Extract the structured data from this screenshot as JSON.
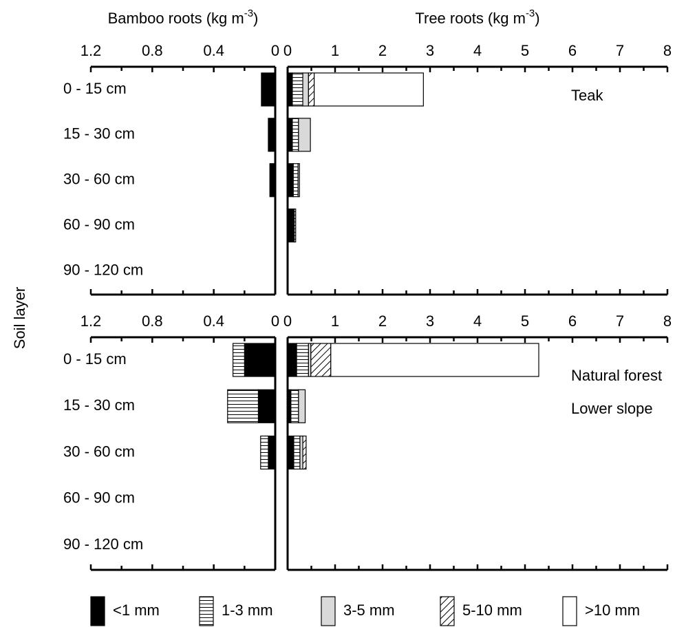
{
  "chart_data": [
    {
      "type": "bar",
      "orientation": "horizontal",
      "x_label": [
        "Bamboo roots (kg m",
        "-3",
        ")"
      ],
      "y_label": "Soil layer",
      "categories": [
        "0 - 15 cm",
        "15 - 30 cm",
        "30 - 60 cm",
        "60 - 90 cm",
        "90 - 120 cm"
      ],
      "xlim": [
        1.2,
        0
      ],
      "xticks": [
        1.2,
        0.8,
        0.4,
        0
      ],
      "minor_xticks": [
        1.0,
        0.6,
        0.2
      ],
      "series": [
        {
          "name": "<1 mm",
          "color": "#000000",
          "pattern": "solid",
          "values": [
            0.09,
            0.045,
            0.035,
            0,
            0
          ]
        },
        {
          "name": "1-3 mm",
          "color": "#000000",
          "pattern": "horizontal",
          "values": [
            0,
            0,
            0,
            0,
            0
          ]
        },
        {
          "name": "3-5 mm",
          "color": "#d9d9d9",
          "pattern": "solid",
          "values": [
            0,
            0,
            0,
            0,
            0
          ]
        },
        {
          "name": "5-10 mm",
          "color": "#000000",
          "pattern": "diagonal",
          "values": [
            0,
            0,
            0,
            0,
            0
          ]
        },
        {
          "name": ">10 mm",
          "color": "#ffffff",
          "pattern": "solid",
          "values": [
            0,
            0,
            0,
            0,
            0
          ]
        }
      ]
    },
    {
      "type": "bar",
      "orientation": "horizontal",
      "x_label": [
        "Tree roots (kg m",
        "-3",
        ")"
      ],
      "annotation": [
        "Teak"
      ],
      "xlim": [
        0,
        8
      ],
      "xticks": [
        0,
        1,
        2,
        3,
        4,
        5,
        6,
        7,
        8
      ],
      "minor_xticks": [
        0.5,
        1.5,
        2.5,
        3.5,
        4.5,
        5.5,
        6.5,
        7.5
      ],
      "series": [
        {
          "name": "<1 mm",
          "color": "#000000",
          "pattern": "solid",
          "values": [
            0.1,
            0.1,
            0.12,
            0.14,
            0
          ]
        },
        {
          "name": "1-3 mm",
          "color": "#000000",
          "pattern": "horizontal",
          "values": [
            0.22,
            0.13,
            0.1,
            0.03,
            0
          ]
        },
        {
          "name": "3-5 mm",
          "color": "#d9d9d9",
          "pattern": "solid",
          "values": [
            0.12,
            0.25,
            0.03,
            0,
            0
          ]
        },
        {
          "name": "5-10 mm",
          "color": "#000000",
          "pattern": "diagonal",
          "values": [
            0.12,
            0,
            0,
            0,
            0
          ]
        },
        {
          "name": ">10 mm",
          "color": "#ffffff",
          "pattern": "solid",
          "values": [
            2.3,
            0,
            0,
            0,
            0
          ]
        }
      ]
    },
    {
      "type": "bar",
      "orientation": "horizontal",
      "categories": [
        "0 - 15 cm",
        "15 - 30 cm",
        "30 - 60 cm",
        "60 - 90 cm",
        "90 - 120 cm"
      ],
      "xlim": [
        1.2,
        0
      ],
      "xticks": [
        1.2,
        0.8,
        0.4,
        0
      ],
      "minor_xticks": [
        1.0,
        0.6,
        0.2
      ],
      "series": [
        {
          "name": "<1 mm",
          "color": "#000000",
          "pattern": "solid",
          "values": [
            0.2,
            0.11,
            0.045,
            0,
            0
          ]
        },
        {
          "name": "1-3 mm",
          "color": "#000000",
          "pattern": "horizontal",
          "values": [
            0.075,
            0.2,
            0.05,
            0,
            0
          ]
        },
        {
          "name": "3-5 mm",
          "color": "#d9d9d9",
          "pattern": "solid",
          "values": [
            0,
            0,
            0,
            0,
            0
          ]
        },
        {
          "name": "5-10 mm",
          "color": "#000000",
          "pattern": "diagonal",
          "values": [
            0,
            0,
            0,
            0,
            0
          ]
        },
        {
          "name": ">10 mm",
          "color": "#ffffff",
          "pattern": "solid",
          "values": [
            0,
            0,
            0,
            0,
            0
          ]
        }
      ]
    },
    {
      "type": "bar",
      "orientation": "horizontal",
      "annotation": [
        "Natural forest",
        "Lower slope"
      ],
      "xlim": [
        0,
        8
      ],
      "xticks": [
        0,
        1,
        2,
        3,
        4,
        5,
        6,
        7,
        8
      ],
      "minor_xticks": [
        0.5,
        1.5,
        2.5,
        3.5,
        4.5,
        5.5,
        6.5,
        7.5
      ],
      "series": [
        {
          "name": "<1 mm",
          "color": "#000000",
          "pattern": "solid",
          "values": [
            0.19,
            0.07,
            0.13,
            0,
            0
          ]
        },
        {
          "name": "1-3 mm",
          "color": "#000000",
          "pattern": "horizontal",
          "values": [
            0.25,
            0.16,
            0.13,
            0,
            0
          ]
        },
        {
          "name": "3-5 mm",
          "color": "#d9d9d9",
          "pattern": "solid",
          "values": [
            0.05,
            0.14,
            0.06,
            0,
            0
          ]
        },
        {
          "name": "5-10 mm",
          "color": "#000000",
          "pattern": "diagonal",
          "values": [
            0.42,
            0,
            0.07,
            0,
            0
          ]
        },
        {
          "name": ">10 mm",
          "color": "#ffffff",
          "pattern": "solid",
          "values": [
            4.38,
            0,
            0,
            0,
            0
          ]
        }
      ]
    }
  ]
}
